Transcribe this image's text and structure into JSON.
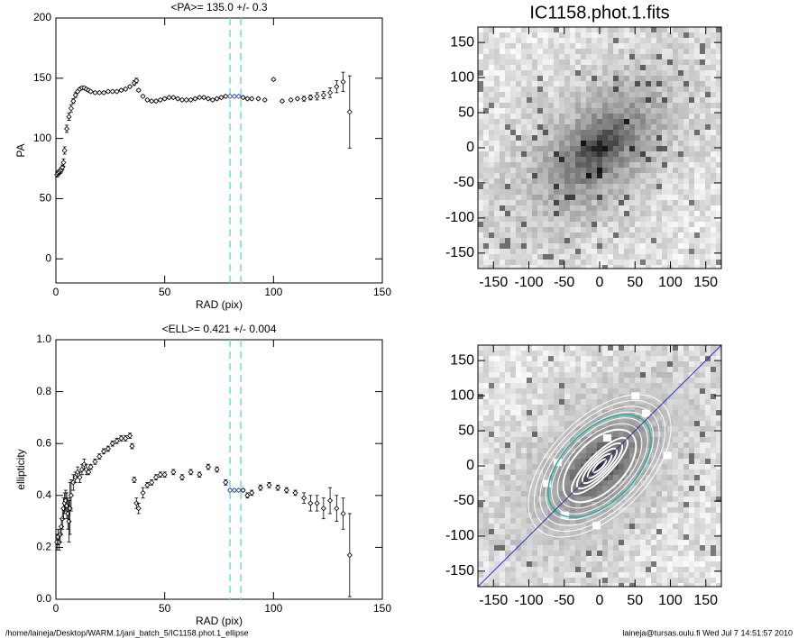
{
  "chart_data": [
    {
      "type": "scatter",
      "title": "<PA>= 135.0 +/-   0.3",
      "x_label": "RAD (pix)",
      "y_label": "PA",
      "xlim": [
        0,
        150
      ],
      "ylim": [
        -20,
        200
      ],
      "xticks": [
        0,
        50,
        100,
        150
      ],
      "yticks": [
        0,
        50,
        100,
        150,
        200
      ],
      "vlines": [
        80,
        85
      ],
      "color": "#000000",
      "vline_color": "#66e0e0",
      "x": [
        0.5,
        1,
        1.5,
        2,
        2.5,
        3,
        3.5,
        4,
        5,
        6,
        7,
        8,
        9,
        10,
        11,
        12,
        13,
        14,
        15,
        16,
        18,
        20,
        22,
        24,
        26,
        28,
        30,
        32,
        34,
        36,
        37,
        38,
        40,
        42,
        44,
        46,
        48,
        50,
        52,
        54,
        56,
        58,
        60,
        62,
        64,
        66,
        68,
        70,
        72,
        74,
        76,
        78,
        80,
        82,
        84,
        86,
        88,
        90,
        93,
        96,
        100,
        104,
        108,
        111,
        114,
        117,
        120,
        123,
        126,
        129,
        132,
        135
      ],
      "y": [
        70,
        71,
        72,
        73,
        74,
        76,
        80,
        90,
        108,
        118,
        125,
        131,
        136,
        139,
        141,
        142,
        142,
        141,
        140,
        139,
        138,
        138,
        138,
        139,
        139,
        139,
        140,
        141,
        143,
        146,
        148,
        140,
        135,
        132,
        131,
        131,
        132,
        133,
        134,
        134,
        133,
        132,
        132,
        132,
        133,
        134,
        134,
        133,
        132,
        133,
        134,
        135,
        135,
        135,
        135,
        134,
        133,
        133,
        133,
        132,
        149,
        131,
        132,
        133,
        133,
        134,
        135,
        136,
        138,
        143,
        147,
        122
      ],
      "errors": [
        2,
        2,
        2,
        2,
        2,
        2,
        3,
        3,
        3,
        3,
        3,
        2,
        2,
        1,
        1,
        1,
        1,
        1,
        1,
        1,
        1,
        1,
        1,
        1,
        1,
        1,
        1,
        1,
        1,
        2,
        2,
        1,
        1,
        1,
        1,
        1,
        1,
        1,
        1,
        1,
        1,
        1,
        1,
        1,
        1,
        1,
        1,
        1,
        1,
        1,
        1,
        1,
        1,
        1,
        1,
        1,
        1,
        1,
        1,
        1,
        1,
        1,
        1,
        1,
        2,
        2,
        3,
        3,
        4,
        5,
        8,
        30
      ]
    },
    {
      "type": "scatter",
      "title": "<ELL>= 0.421 +/-  0.004",
      "x_label": "RAD (pix)",
      "y_label": "ellipticity",
      "xlim": [
        0,
        150
      ],
      "ylim": [
        0,
        1
      ],
      "xticks": [
        0,
        50,
        100,
        150
      ],
      "yticks": [
        {
          "value": 0,
          "label": "0.0"
        },
        0.2,
        0.4,
        0.6,
        0.8,
        {
          "value": 1,
          "label": "1.0"
        }
      ],
      "vlines": [
        80,
        85
      ],
      "color": "#000000",
      "vline_color": "#66e0e0",
      "x": [
        0.5,
        1,
        1.5,
        2,
        2.5,
        3,
        3.5,
        4,
        4.5,
        5,
        5.5,
        6,
        6.5,
        7,
        8,
        9,
        10,
        11,
        12,
        13,
        14,
        15,
        16,
        18,
        20,
        22,
        24,
        26,
        28,
        30,
        32,
        34,
        35,
        36,
        37,
        38,
        40,
        42,
        44,
        46,
        48,
        50,
        54,
        58,
        62,
        66,
        70,
        74,
        78,
        80,
        82,
        84,
        86,
        88,
        90,
        94,
        98,
        102,
        106,
        110,
        114,
        117,
        120,
        123,
        126,
        129,
        132,
        135
      ],
      "y": [
        0.22,
        0.24,
        0.22,
        0.25,
        0.28,
        0.31,
        0.35,
        0.37,
        0.38,
        0.36,
        0.33,
        0.3,
        0.35,
        0.4,
        0.45,
        0.47,
        0.49,
        0.47,
        0.5,
        0.52,
        0.5,
        0.49,
        0.51,
        0.53,
        0.55,
        0.57,
        0.58,
        0.6,
        0.61,
        0.62,
        0.62,
        0.63,
        0.59,
        0.46,
        0.37,
        0.35,
        0.41,
        0.44,
        0.45,
        0.47,
        0.48,
        0.48,
        0.49,
        0.47,
        0.49,
        0.48,
        0.51,
        0.5,
        0.45,
        0.42,
        0.42,
        0.42,
        0.42,
        0.4,
        0.41,
        0.43,
        0.44,
        0.43,
        0.42,
        0.41,
        0.39,
        0.37,
        0.37,
        0.35,
        0.38,
        0.35,
        0.33,
        0.17
      ],
      "errors": [
        0.03,
        0.03,
        0.03,
        0.03,
        0.03,
        0.04,
        0.04,
        0.04,
        0.04,
        0.05,
        0.06,
        0.08,
        0.1,
        0.06,
        0.03,
        0.02,
        0.02,
        0.02,
        0.02,
        0.02,
        0.02,
        0.01,
        0.01,
        0.01,
        0.01,
        0.01,
        0.01,
        0.01,
        0.01,
        0.01,
        0.01,
        0.01,
        0.01,
        0.01,
        0.02,
        0.02,
        0.02,
        0.01,
        0.01,
        0.01,
        0.01,
        0.01,
        0.01,
        0.01,
        0.01,
        0.01,
        0.01,
        0.01,
        0.01,
        0.005,
        0.005,
        0.005,
        0.005,
        0.01,
        0.01,
        0.01,
        0.01,
        0.01,
        0.01,
        0.01,
        0.02,
        0.03,
        0.03,
        0.04,
        0.05,
        0.05,
        0.06,
        0.16
      ]
    },
    {
      "type": "image",
      "title": "IC1158.phot.1.fits",
      "xlim": [
        -172,
        172
      ],
      "ylim": [
        -172,
        172
      ],
      "xticks": [
        -150,
        -100,
        -50,
        0,
        50,
        100,
        150
      ],
      "yticks": [
        -150,
        -100,
        -50,
        0,
        50,
        100,
        150
      ]
    },
    {
      "type": "image",
      "xlim": [
        -172,
        172
      ],
      "ylim": [
        -172,
        172
      ],
      "xticks": [
        -150,
        -100,
        -50,
        0,
        50,
        100,
        150
      ],
      "yticks": [
        -150,
        -100,
        -50,
        0,
        50,
        100,
        150
      ],
      "overlay": true
    }
  ],
  "footer": {
    "left": "/home/laineja/Desktop/WARM.1/jani_batch_5/IC1158.phot.1_ellipse",
    "right": "laineja@tursas.oulu.fi  Wed Jul  7 14:51:57 2010"
  }
}
